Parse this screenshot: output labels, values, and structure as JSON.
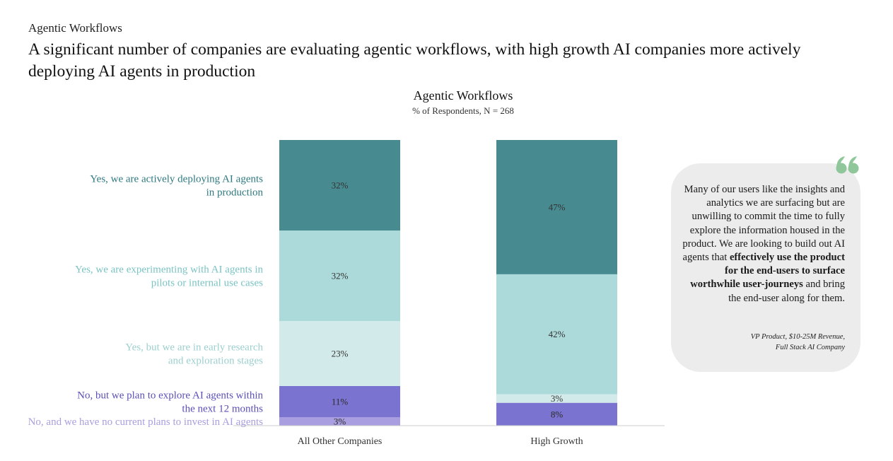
{
  "page": {
    "eyebrow": "Agentic Workflows",
    "headline": "A significant number of companies are evaluating agentic workflows, with high growth AI companies more actively deploying AI agents in production"
  },
  "chart_data": {
    "type": "bar",
    "stacked": true,
    "title": "Agentic Workflows",
    "subtitle": "% of Respondents, N = 268",
    "categories": [
      "All Other Companies",
      "High Growth"
    ],
    "series": [
      {
        "name": "No, and we have no current plans to invest in AI agents",
        "values": [
          3,
          0
        ],
        "labels": [
          "3%",
          ""
        ],
        "color": "#a99ee0",
        "label_color": "#a99ee0"
      },
      {
        "name": "No, but we plan to explore AI agents within the next 12 months",
        "values": [
          11,
          8
        ],
        "labels": [
          "11%",
          "8%"
        ],
        "color": "#7b73d0",
        "label_color": "#5a50b8"
      },
      {
        "name": "Yes, but we are in early research and exploration stages",
        "values": [
          23,
          3
        ],
        "labels": [
          "23%",
          "3%"
        ],
        "color": "#d3eaea",
        "label_color": "#9ecfcf"
      },
      {
        "name": "Yes, we are experimenting with AI agents in pilots or internal use cases",
        "values": [
          32,
          42
        ],
        "labels": [
          "32%",
          "42%"
        ],
        "color": "#acd9d9",
        "label_color": "#7cc3c3"
      },
      {
        "name": "Yes, we are actively deploying AI agents in production",
        "values": [
          32,
          47
        ],
        "labels": [
          "32%",
          "47%"
        ],
        "color": "#478b90",
        "label_color": "#2f7a80"
      }
    ],
    "legend_position": "left"
  },
  "quote": {
    "parts": [
      {
        "text": "Many of our users like the insights and analytics we are surfacing but are unwilling to commit the time to fully explore the information housed in the product. We are looking to build out AI agents that ",
        "bold": false
      },
      {
        "text": "effectively use the product for the end-users to surface worthwhile user-journeys",
        "bold": true
      },
      {
        "text": " and bring the end-user along for them.",
        "bold": false
      }
    ],
    "attribution_line1": "VP Product, $10-25M Revenue,",
    "attribution_line2": "Full Stack AI Company",
    "icon": "quote-icon",
    "icon_color": "#8fc79a"
  }
}
